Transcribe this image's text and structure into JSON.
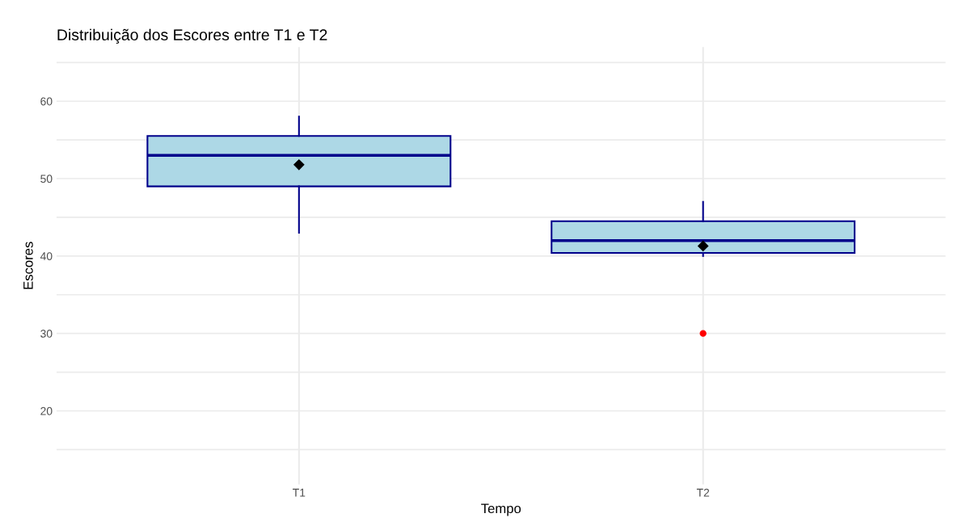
{
  "chart_data": {
    "type": "box",
    "title": "Distribuição dos Escores entre T1 e T2",
    "xlabel": "Tempo",
    "ylabel": "Escores",
    "categories": [
      "T1",
      "T2"
    ],
    "series": [
      {
        "color": "#add8e6",
        "boxes": [
          {
            "low": 43,
            "q1": 49,
            "median": 53,
            "q3": 55.5,
            "high": 58,
            "mean": 51.8
          },
          {
            "low": 40,
            "q1": 40.4,
            "median": 42,
            "q3": 44.5,
            "high": 47,
            "mean": 41.3,
            "outliers": [
              30
            ]
          }
        ]
      }
    ],
    "ylim": [
      10.5,
      67
    ],
    "yticks": [
      {
        "value": 15,
        "label": null
      },
      20,
      {
        "value": 25,
        "label": null
      },
      30,
      {
        "value": 35,
        "label": null
      },
      40,
      {
        "value": 45,
        "label": null
      },
      50,
      {
        "value": 55,
        "label": null
      },
      60,
      {
        "value": 65,
        "label": null
      }
    ],
    "grid": true
  }
}
